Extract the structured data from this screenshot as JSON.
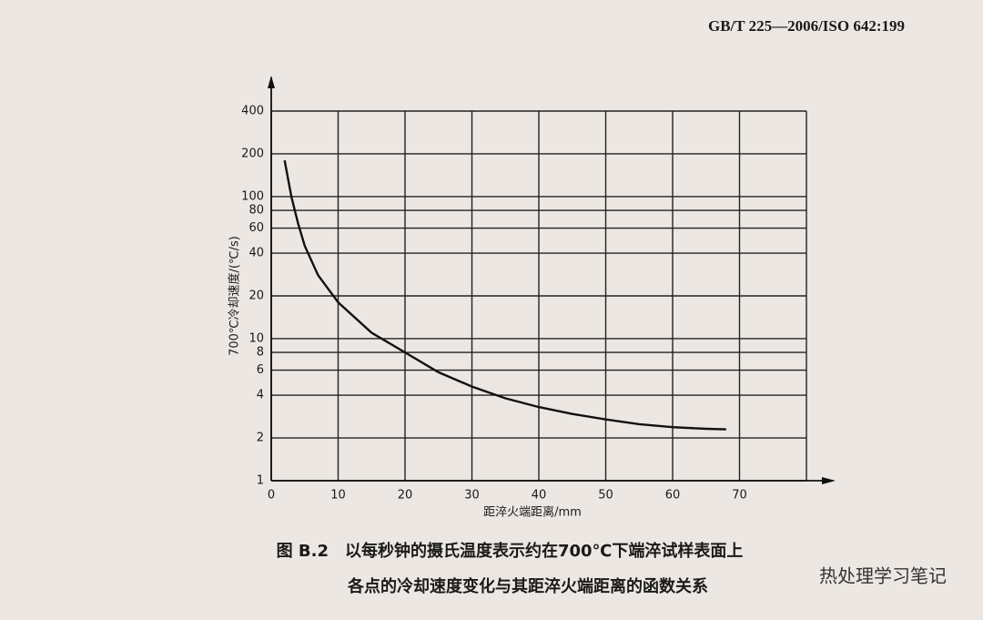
{
  "header": "GB/T 225—2006/ISO 642:199",
  "chart_data": {
    "type": "line",
    "yscale": "log",
    "ylabel": "700℃冷却速度/(℃/s)",
    "xlabel": "距淬火端距离/mm",
    "x": [
      2,
      3,
      4,
      5,
      7,
      10,
      15,
      20,
      25,
      30,
      35,
      40,
      45,
      50,
      55,
      60,
      65,
      68
    ],
    "values": [
      180,
      100,
      65,
      45,
      28,
      18,
      11,
      8,
      5.8,
      4.6,
      3.8,
      3.3,
      2.95,
      2.7,
      2.5,
      2.38,
      2.32,
      2.3
    ],
    "color": "#111111",
    "xlim": [
      0,
      80
    ],
    "xticks": [
      0,
      10,
      20,
      30,
      40,
      50,
      60,
      70
    ],
    "ylim": [
      1,
      400
    ],
    "yticks": [
      1,
      2,
      4,
      6,
      8,
      10,
      20,
      40,
      60,
      80,
      100,
      200,
      400
    ],
    "grid": true
  },
  "caption": [
    "图 B.2　以每秒钟的摄氏温度表示约在700℃下端淬试样表面上",
    "各点的冷却速度变化与其距淬火端距离的函数关系"
  ],
  "watermark": "热处理学习笔记"
}
